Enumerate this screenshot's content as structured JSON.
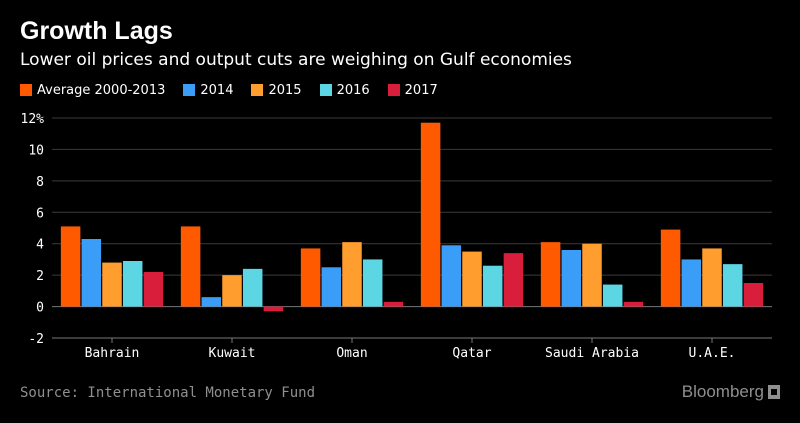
{
  "title": "Growth Lags",
  "subtitle": "Lower oil prices and output cuts are weighing on Gulf economies",
  "source": "Source: International Monetary Fund",
  "brand": "Bloomberg",
  "chart_data": {
    "type": "bar",
    "categories": [
      "Bahrain",
      "Kuwait",
      "Oman",
      "Qatar",
      "Saudi Arabia",
      "U.A.E."
    ],
    "series": [
      {
        "name": "Average 2000-2013",
        "color": "#ff5a00",
        "values": [
          5.1,
          5.1,
          3.7,
          11.7,
          4.1,
          4.9
        ]
      },
      {
        "name": "2014",
        "color": "#3a9df8",
        "values": [
          4.3,
          0.6,
          2.5,
          3.9,
          3.6,
          3.0
        ]
      },
      {
        "name": "2015",
        "color": "#ff9d2e",
        "values": [
          2.8,
          2.0,
          4.1,
          3.5,
          4.0,
          3.7
        ]
      },
      {
        "name": "2016",
        "color": "#5dd6e4",
        "values": [
          2.9,
          2.4,
          3.0,
          2.6,
          1.4,
          2.7
        ]
      },
      {
        "name": "2017",
        "color": "#d91e3c",
        "values": [
          2.2,
          -0.3,
          0.3,
          3.4,
          0.3,
          1.5
        ]
      }
    ],
    "yticks": [
      "12%",
      "10",
      "8",
      "6",
      "4",
      "2",
      "0",
      "-2"
    ],
    "ylim": [
      -2,
      12
    ],
    "grid": true,
    "legend_position": "top-left"
  }
}
